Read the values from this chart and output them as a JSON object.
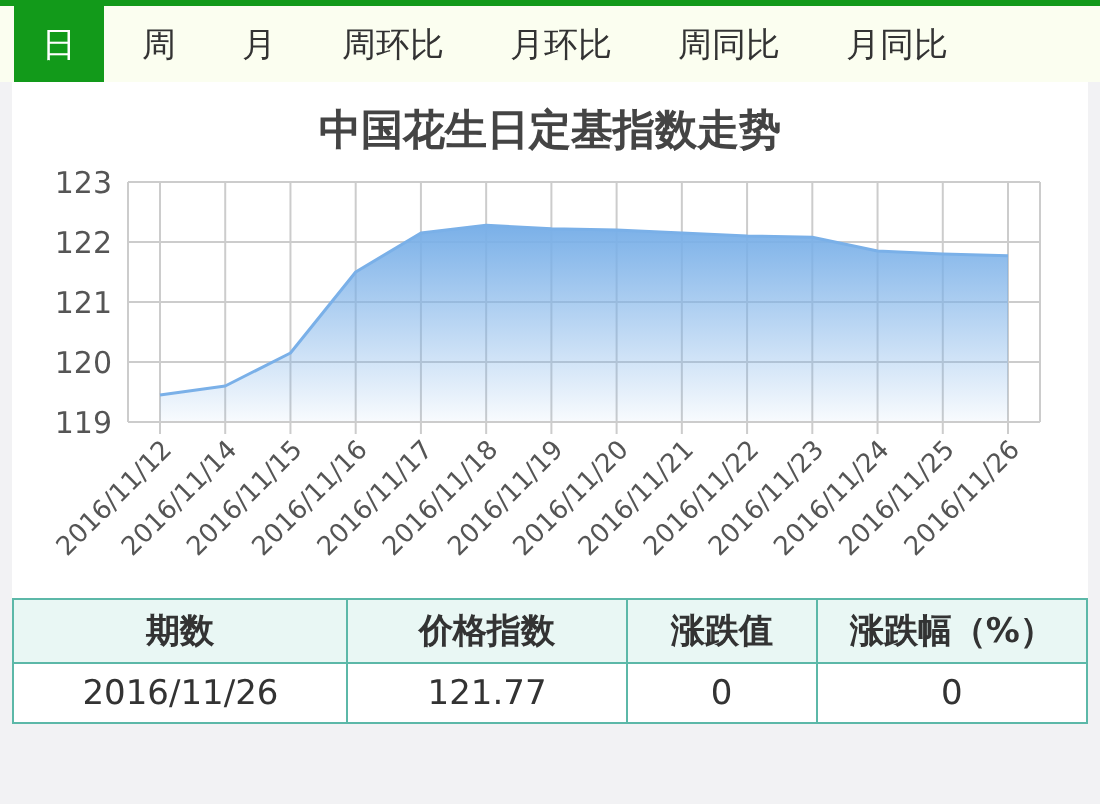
{
  "chart_data": [
    {
      "type": "other",
      "annotations": [
        "日",
        "周",
        "月",
        "周环比",
        "月环比",
        "周同比",
        "月同比"
      ]
    },
    {
      "type": "area",
      "title": "中国花生日定基指数走势",
      "categories": [
        "2016/11/12",
        "2016/11/14",
        "2016/11/15",
        "2016/11/16",
        "2016/11/17",
        "2016/11/18",
        "2016/11/19",
        "2016/11/20",
        "2016/11/21",
        "2016/11/22",
        "2016/11/23",
        "2016/11/24",
        "2016/11/25",
        "2016/11/26"
      ],
      "series": [
        {
          "color": "#7ab0e8",
          "values": [
            119.45,
            119.6,
            120.15,
            121.5,
            122.15,
            122.28,
            122.22,
            122.2,
            122.15,
            122.1,
            122.08,
            121.85,
            121.8,
            121.77
          ]
        }
      ],
      "ylim": [
        119,
        123
      ],
      "yticks": [
        119,
        120,
        121,
        122,
        123
      ],
      "grid": true,
      "legend": false,
      "marker": "none"
    },
    {
      "type": "other",
      "annotations": [
        "期数",
        "价格指数",
        "涨跌值",
        "涨跌幅（%）",
        "2016/11/26",
        "121.77",
        "0",
        "0"
      ]
    }
  ]
}
